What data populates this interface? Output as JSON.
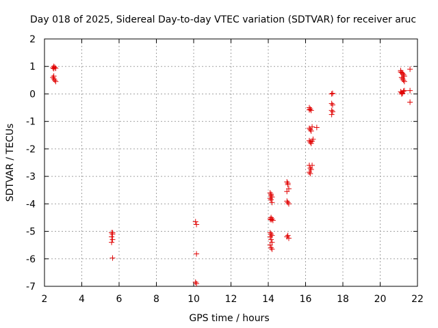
{
  "chart_data": {
    "type": "scatter",
    "title": "Day 018 of 2025, Sidereal Day-to-day VTEC variation (SDTVAR) for receiver aruc",
    "xlabel": "GPS time / hours",
    "ylabel": "SDTVAR / TECUs",
    "xlim": [
      2,
      22
    ],
    "ylim": [
      -7,
      2
    ],
    "xticks": [
      2,
      4,
      6,
      8,
      10,
      12,
      14,
      16,
      18,
      20,
      22
    ],
    "yticks": [
      2,
      1,
      0,
      -1,
      -2,
      -3,
      -4,
      -5,
      -6,
      -7
    ],
    "xtick_labels": [
      "2",
      "4",
      "6",
      "8",
      "10",
      "12",
      "14",
      "16",
      "18",
      "20",
      "22"
    ],
    "ytick_labels": [
      "2",
      "1",
      "0",
      "-1",
      "-2",
      "-3",
      "-4",
      "-5",
      "-6",
      "-7"
    ],
    "grid": true,
    "marker": "+",
    "marker_color": "#e00000",
    "series": [
      {
        "name": "SDTVAR",
        "points": [
          [
            2.45,
            0.95
          ],
          [
            2.5,
            0.92
          ],
          [
            2.55,
            0.97
          ],
          [
            2.6,
            0.93
          ],
          [
            2.5,
            1.0
          ],
          [
            2.45,
            0.6
          ],
          [
            2.5,
            0.55
          ],
          [
            2.55,
            0.5
          ],
          [
            2.6,
            0.45
          ],
          [
            2.5,
            0.65
          ],
          [
            5.6,
            -5.05
          ],
          [
            5.65,
            -5.1
          ],
          [
            5.6,
            -5.2
          ],
          [
            5.65,
            -5.3
          ],
          [
            5.6,
            -5.4
          ],
          [
            5.65,
            -5.05
          ],
          [
            5.65,
            -5.97
          ],
          [
            10.1,
            -4.65
          ],
          [
            10.15,
            -4.75
          ],
          [
            10.15,
            -5.82
          ],
          [
            10.1,
            -6.85
          ],
          [
            10.15,
            -6.9
          ],
          [
            14.1,
            -3.6
          ],
          [
            14.15,
            -3.7
          ],
          [
            14.2,
            -3.75
          ],
          [
            14.1,
            -3.8
          ],
          [
            14.15,
            -3.85
          ],
          [
            14.2,
            -3.95
          ],
          [
            14.15,
            -3.65
          ],
          [
            14.1,
            -4.55
          ],
          [
            14.15,
            -4.5
          ],
          [
            14.2,
            -4.55
          ],
          [
            14.25,
            -4.6
          ],
          [
            14.15,
            -4.58
          ],
          [
            14.1,
            -5.05
          ],
          [
            14.15,
            -5.1
          ],
          [
            14.2,
            -5.15
          ],
          [
            14.1,
            -5.2
          ],
          [
            14.15,
            -5.3
          ],
          [
            14.2,
            -5.4
          ],
          [
            14.1,
            -5.5
          ],
          [
            14.15,
            -5.6
          ],
          [
            14.2,
            -5.65
          ],
          [
            15.0,
            -3.2
          ],
          [
            15.05,
            -3.3
          ],
          [
            15.1,
            -3.45
          ],
          [
            15.0,
            -3.55
          ],
          [
            15.05,
            -3.25
          ],
          [
            15.0,
            -3.9
          ],
          [
            15.05,
            -3.95
          ],
          [
            15.1,
            -4.0
          ],
          [
            15.0,
            -5.2
          ],
          [
            15.05,
            -5.15
          ],
          [
            15.1,
            -5.25
          ],
          [
            16.2,
            -0.5
          ],
          [
            16.25,
            -0.55
          ],
          [
            16.3,
            -0.6
          ],
          [
            16.2,
            -0.58
          ],
          [
            16.2,
            -1.25
          ],
          [
            16.25,
            -1.3
          ],
          [
            16.3,
            -1.35
          ],
          [
            16.35,
            -1.2
          ],
          [
            16.6,
            -1.22
          ],
          [
            16.2,
            -1.7
          ],
          [
            16.25,
            -1.75
          ],
          [
            16.3,
            -1.8
          ],
          [
            16.35,
            -1.72
          ],
          [
            16.4,
            -1.65
          ],
          [
            16.2,
            -2.6
          ],
          [
            16.25,
            -2.7
          ],
          [
            16.3,
            -2.75
          ],
          [
            16.35,
            -2.6
          ],
          [
            16.2,
            -2.85
          ],
          [
            16.25,
            -2.9
          ],
          [
            17.4,
            0.0
          ],
          [
            17.45,
            0.02
          ],
          [
            17.4,
            -0.35
          ],
          [
            17.45,
            -0.4
          ],
          [
            17.4,
            -0.6
          ],
          [
            17.45,
            -0.65
          ],
          [
            17.4,
            -0.75
          ],
          [
            21.1,
            0.8
          ],
          [
            21.15,
            0.78
          ],
          [
            21.2,
            0.75
          ],
          [
            21.25,
            0.7
          ],
          [
            21.3,
            0.65
          ],
          [
            21.15,
            0.6
          ],
          [
            21.2,
            0.55
          ],
          [
            21.25,
            0.5
          ],
          [
            21.3,
            0.45
          ],
          [
            21.1,
            0.85
          ],
          [
            21.1,
            0.08
          ],
          [
            21.15,
            0.05
          ],
          [
            21.2,
            0.02
          ],
          [
            21.25,
            0.1
          ],
          [
            21.3,
            0.12
          ],
          [
            21.15,
            0.0
          ],
          [
            21.6,
            0.9
          ],
          [
            21.6,
            0.12
          ],
          [
            21.6,
            -0.3
          ]
        ]
      }
    ]
  }
}
